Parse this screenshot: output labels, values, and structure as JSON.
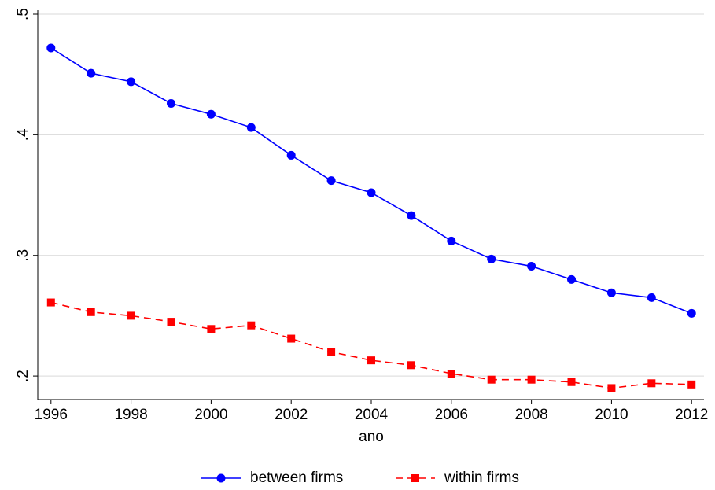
{
  "chart_data": {
    "type": "line",
    "x": [
      1996,
      1997,
      1998,
      1999,
      2000,
      2001,
      2002,
      2003,
      2004,
      2005,
      2006,
      2007,
      2008,
      2009,
      2010,
      2011,
      2012
    ],
    "x_label": "ano",
    "series": [
      {
        "name": "between firms",
        "color": "#0000ff",
        "marker": "circle",
        "dash": false,
        "values": [
          0.472,
          0.451,
          0.444,
          0.426,
          0.417,
          0.406,
          0.383,
          0.362,
          0.352,
          0.333,
          0.312,
          0.297,
          0.291,
          0.28,
          0.269,
          0.265,
          0.252
        ]
      },
      {
        "name": "within firms",
        "color": "#ff0000",
        "marker": "square",
        "dash": true,
        "values": [
          0.261,
          0.253,
          0.25,
          0.245,
          0.239,
          0.242,
          0.231,
          0.22,
          0.213,
          0.209,
          0.202,
          0.197,
          0.197,
          0.195,
          0.19,
          0.194,
          0.193
        ]
      }
    ],
    "xlim": [
      1995.67,
      2012.31
    ],
    "xticks": [
      1996,
      1998,
      2000,
      2002,
      2004,
      2006,
      2008,
      2010,
      2012
    ],
    "ylim": [
      0.1805,
      0.5
    ],
    "yticks": [
      {
        "value": 0.2,
        "label": ".2"
      },
      {
        "value": 0.3,
        "label": ".3"
      },
      {
        "value": 0.4,
        "label": ".4"
      },
      {
        "value": 0.5,
        "label": ".5"
      }
    ],
    "grid": true,
    "legend": "bottom"
  }
}
